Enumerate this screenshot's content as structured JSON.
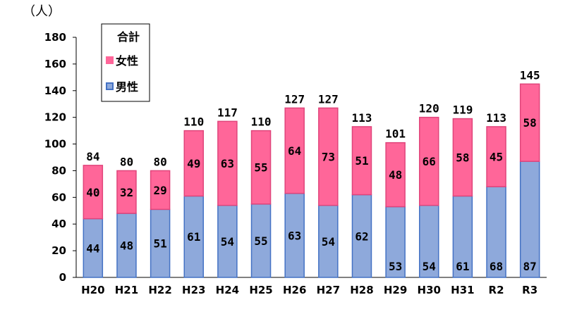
{
  "unit_label": "（人）",
  "chart_data": {
    "type": "bar",
    "stacked": true,
    "categories": [
      "H20",
      "H21",
      "H22",
      "H23",
      "H24",
      "H25",
      "H26",
      "H27",
      "H28",
      "H29",
      "H30",
      "H31",
      "R2",
      "R3"
    ],
    "series": [
      {
        "name": "男性",
        "color": "#8EA9DB",
        "edge": "#4472C4",
        "values": [
          44,
          48,
          51,
          61,
          54,
          55,
          63,
          54,
          62,
          53,
          54,
          61,
          68,
          87
        ]
      },
      {
        "name": "女性",
        "color": "#FF6699",
        "edge": "#E0457B",
        "values": [
          40,
          32,
          29,
          49,
          63,
          55,
          64,
          73,
          51,
          48,
          66,
          58,
          45,
          58
        ]
      }
    ],
    "totals": [
      84,
      80,
      80,
      110,
      117,
      110,
      127,
      127,
      113,
      101,
      120,
      119,
      113,
      145
    ],
    "total_label": "合計",
    "ylim": [
      0,
      180
    ],
    "yticks": [
      0,
      20,
      40,
      60,
      80,
      100,
      120,
      140,
      160,
      180
    ],
    "grid": false,
    "legend_position": "top-left"
  }
}
